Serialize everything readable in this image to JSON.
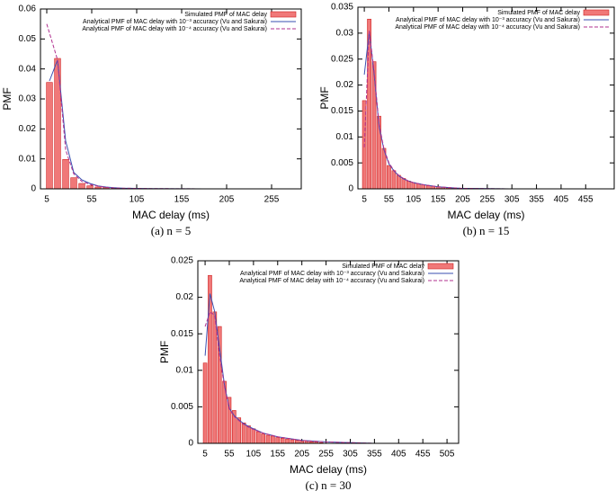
{
  "chart_data": [
    {
      "type": "bar",
      "caption": "(a) n = 5",
      "xlabel": "MAC delay (ms)",
      "ylabel": "PMF",
      "xlim": [
        -2,
        288
      ],
      "xticks": [
        5,
        55,
        105,
        155,
        205,
        255
      ],
      "ylim": [
        0,
        0.06
      ],
      "yticks": [
        0,
        0.01,
        0.02,
        0.03,
        0.04,
        0.05,
        0.06
      ],
      "series": [
        {
          "name": "Simulated PMF of MAC delay",
          "type": "bar",
          "color": "#f07878",
          "x": [
            8,
            17,
            26,
            35,
            44,
            53,
            62,
            71,
            80,
            89
          ],
          "values": [
            0.0355,
            0.0435,
            0.0098,
            0.0037,
            0.0018,
            0.001,
            0.0006,
            0.0004,
            0.0002,
            0.0001
          ]
        },
        {
          "name": "Analytical PMF of MAC delay with 10⁻³ accuracy (Vu and Sakurai)",
          "type": "line",
          "color": "#3a4fb0",
          "x": [
            8,
            17,
            26,
            35,
            44,
            53,
            62,
            71,
            80,
            89,
            120,
            180,
            278
          ],
          "values": [
            0.036,
            0.043,
            0.016,
            0.0055,
            0.003,
            0.0018,
            0.001,
            0.0006,
            0.0004,
            0.0002,
            0.0001,
            0,
            0
          ]
        },
        {
          "name": "Analytical PMF of MAC delay with 10⁻⁴ accuracy  (Vu and Sakurai)",
          "type": "line",
          "dash": true,
          "color": "#b0308f",
          "x": [
            5,
            17,
            26,
            35,
            44,
            53,
            62,
            71,
            80,
            89,
            120,
            180,
            278
          ],
          "values": [
            0.055,
            0.043,
            0.013,
            0.005,
            0.0025,
            0.0015,
            0.0009,
            0.0005,
            0.0003,
            0.0002,
            0.0001,
            0,
            0
          ]
        }
      ]
    },
    {
      "type": "bar",
      "caption": "(b) n = 15",
      "xlabel": "MAC delay (ms)",
      "ylabel": "PMF",
      "xlim": [
        -8,
        513
      ],
      "xticks": [
        5,
        55,
        105,
        155,
        205,
        255,
        305,
        355,
        405,
        455
      ],
      "ylim": [
        0,
        0.035
      ],
      "yticks": [
        0,
        0.005,
        0.01,
        0.015,
        0.02,
        0.025,
        0.03,
        0.035
      ],
      "series": [
        {
          "name": "Simulated PMF of MAC delay",
          "type": "bar",
          "color": "#f07878",
          "x": [
            5,
            15,
            25,
            35,
            45,
            55,
            65,
            75,
            85,
            95,
            105,
            115,
            125,
            135,
            145,
            155,
            165,
            175,
            185,
            195
          ],
          "values": [
            0.017,
            0.0327,
            0.0245,
            0.014,
            0.0078,
            0.0045,
            0.0035,
            0.0026,
            0.002,
            0.0015,
            0.0012,
            0.001,
            0.0008,
            0.0006,
            0.0005,
            0.0004,
            0.0003,
            0.0002,
            0.0002,
            0.0001
          ]
        },
        {
          "name": "Analytical PMF of MAC delay with 10⁻³ accuracy (Vu and Sakurai)",
          "type": "line",
          "color": "#3a4fb0",
          "x": [
            5,
            15,
            25,
            35,
            45,
            55,
            65,
            75,
            85,
            95,
            105,
            125,
            155,
            200,
            300,
            500
          ],
          "values": [
            0.022,
            0.0303,
            0.022,
            0.012,
            0.0075,
            0.0048,
            0.0035,
            0.0025,
            0.0019,
            0.0015,
            0.0012,
            0.0008,
            0.0004,
            0.0001,
            0,
            0
          ]
        },
        {
          "name": "Analytical PMF of MAC delay with 10⁻⁴ accuracy  (Vu and Sakurai)",
          "type": "line",
          "dash": true,
          "color": "#b0308f",
          "x": [
            5,
            15,
            25,
            35,
            45,
            55,
            65,
            75,
            85,
            95,
            105,
            125,
            155,
            200,
            300,
            500
          ],
          "values": [
            0.008,
            0.0305,
            0.0225,
            0.0125,
            0.0077,
            0.005,
            0.0036,
            0.0026,
            0.002,
            0.0015,
            0.0012,
            0.0008,
            0.0004,
            0.0001,
            0,
            0
          ]
        }
      ]
    },
    {
      "type": "bar",
      "caption": "(c) n = 30",
      "xlabel": "MAC delay (ms)",
      "ylabel": "PMF",
      "xlim": [
        -10,
        529
      ],
      "xticks": [
        5,
        55,
        105,
        155,
        205,
        255,
        305,
        355,
        405,
        455,
        505
      ],
      "ylim": [
        0,
        0.025
      ],
      "yticks": [
        0,
        0.005,
        0.01,
        0.015,
        0.02,
        0.025
      ],
      "series": [
        {
          "name": "Simulated PMF of MAC delay",
          "type": "bar",
          "color": "#f07878",
          "x": [
            5,
            15,
            25,
            35,
            45,
            55,
            65,
            75,
            85,
            95,
            105,
            115,
            125,
            135,
            145,
            155,
            165,
            175,
            185,
            195,
            205,
            215,
            225,
            235,
            245
          ],
          "values": [
            0.011,
            0.023,
            0.018,
            0.016,
            0.0085,
            0.0063,
            0.0045,
            0.0035,
            0.0028,
            0.0024,
            0.002,
            0.0016,
            0.0013,
            0.0011,
            0.001,
            0.0008,
            0.0007,
            0.0006,
            0.0005,
            0.0004,
            0.0003,
            0.0003,
            0.0002,
            0.0002,
            0.0001
          ]
        },
        {
          "name": "Analytical PMF of MAC delay with 10⁻³ accuracy (Vu and Sakurai)",
          "type": "line",
          "color": "#3a4fb0",
          "x": [
            5,
            15,
            25,
            35,
            45,
            55,
            65,
            75,
            85,
            95,
            105,
            125,
            155,
            205,
            255,
            355,
            520
          ],
          "values": [
            0.012,
            0.0205,
            0.018,
            0.013,
            0.008,
            0.0048,
            0.0038,
            0.0032,
            0.0027,
            0.0023,
            0.002,
            0.0014,
            0.0009,
            0.0004,
            0.0002,
            0,
            0
          ]
        },
        {
          "name": "Analytical PMF of MAC delay with 10⁻⁴ accuracy  (Vu and Sakurai)",
          "type": "line",
          "dash": true,
          "color": "#b0308f",
          "x": [
            5,
            15,
            25,
            35,
            45,
            55,
            65,
            75,
            85,
            95,
            105,
            125,
            155,
            205,
            255,
            355,
            520
          ],
          "values": [
            0.016,
            0.018,
            0.0175,
            0.012,
            0.0078,
            0.0047,
            0.0037,
            0.0031,
            0.0026,
            0.0022,
            0.0019,
            0.0014,
            0.0009,
            0.0004,
            0.0002,
            0,
            0
          ]
        }
      ]
    }
  ]
}
